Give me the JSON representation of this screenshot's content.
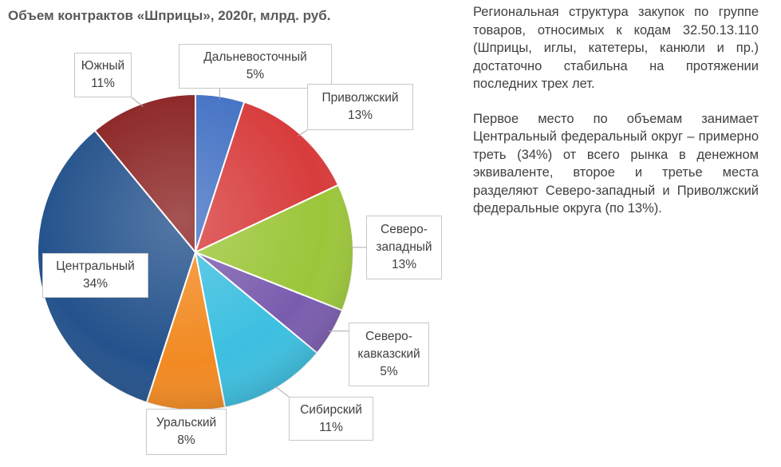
{
  "chart_data": {
    "type": "pie",
    "title": "Объем контрактов «Шприцы», 2020г, млрд. руб.",
    "slices": [
      {
        "label": "Дальневосточный",
        "value": 5,
        "value_label": "5%",
        "color": "#4472c4"
      },
      {
        "label": "Приволжский",
        "value": 13,
        "value_label": "13%",
        "color": "#d83c3c"
      },
      {
        "label": "Северо-западный",
        "label_lines": [
          "Северо-",
          "западный"
        ],
        "value": 13,
        "value_label": "13%",
        "color": "#9cc63a"
      },
      {
        "label": "Северо-кавказский",
        "label_lines": [
          "Северо-",
          "кавказский"
        ],
        "value": 5,
        "value_label": "5%",
        "color": "#7a5cae"
      },
      {
        "label": "Сибирский",
        "value": 11,
        "value_label": "11%",
        "color": "#3cbfe0"
      },
      {
        "label": "Уральский",
        "value": 8,
        "value_label": "8%",
        "color": "#f28a22"
      },
      {
        "label": "Центральный",
        "value": 34,
        "value_label": "34%",
        "color": "#24528c"
      },
      {
        "label": "Южный",
        "value": 11,
        "value_label": "11%",
        "color": "#8b2323"
      }
    ],
    "legend": "none"
  },
  "description": {
    "paragraphs": [
      "Региональная структура закупок по группе товаров, относимых к кодам 32.50.13.110 (Шприцы, иглы, катетеры, канюли и пр.) достаточно стабильна на протяжении последних трех лет.",
      "Первое место по объемам занимает Центральный федеральный округ – примерно треть (34%) от всего рынка в денежном эквиваленте, второе и третье места разделяют Северо-западный и Приволжский федеральные округа (по 13%)."
    ]
  }
}
